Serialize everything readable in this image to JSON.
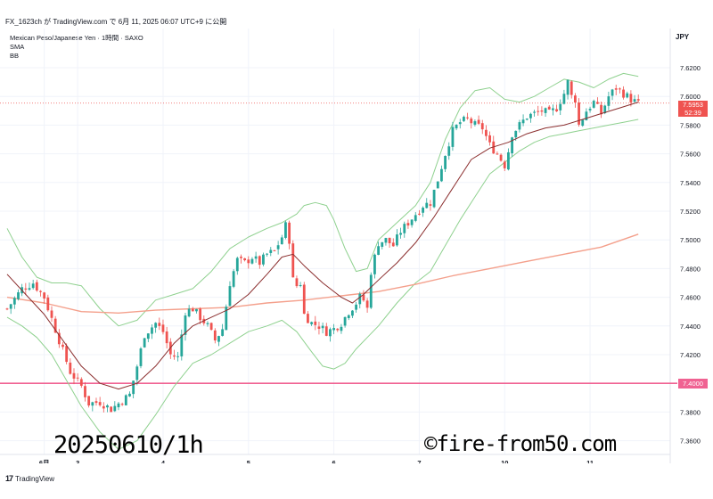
{
  "header": {
    "publish_line": "FX_1623ch が TradingView.com で 6月 11, 2025 06:07 UTC+9 に公開"
  },
  "legend": {
    "symbol": "Mexican Peso/Japanese Yen · 1時間 · SAXO",
    "ind1": "SMA",
    "ind2": "BB"
  },
  "currency": "JPY",
  "price_tag": {
    "price": "7.5953",
    "countdown": "52:39",
    "color": "#ef5350"
  },
  "level_tag": {
    "price": "7.4000",
    "color": "#f06292"
  },
  "footer": {
    "brand": "TradingView"
  },
  "watermarks": {
    "left": "20250610/1h",
    "right": "©fire-from50.com"
  },
  "colors": {
    "up": "#26a69a",
    "down": "#ef5350",
    "sma_short": "#8b2e2e",
    "sma_long": "#f4a08c",
    "bb": "#8fd18f",
    "level_line": "#f06292",
    "grid": "#f0f3fa"
  },
  "chart_data": {
    "type": "candlestick",
    "y_ticks": [
      "7.6200",
      "7.6000",
      "7.5800",
      "7.5600",
      "7.5400",
      "7.5200",
      "7.5000",
      "7.4800",
      "7.4600",
      "7.4400",
      "7.4200",
      "7.4000",
      "7.3800",
      "7.3600"
    ],
    "ylim": [
      7.349,
      7.6435
    ],
    "x_ticks": [
      {
        "label": "6月",
        "i": 10
      },
      {
        "label": "3",
        "i": 19
      },
      {
        "label": "4",
        "i": 42
      },
      {
        "label": "5",
        "i": 65
      },
      {
        "label": "6",
        "i": 88
      },
      {
        "label": "7",
        "i": 111
      },
      {
        "label": "10",
        "i": 134
      },
      {
        "label": "11",
        "i": 157
      }
    ],
    "close_points": [
      [
        0,
        7.452
      ],
      [
        4,
        7.466
      ],
      [
        7,
        7.47
      ],
      [
        10,
        7.46
      ],
      [
        14,
        7.43
      ],
      [
        17,
        7.408
      ],
      [
        20,
        7.398
      ],
      [
        22,
        7.386
      ],
      [
        25,
        7.387
      ],
      [
        28,
        7.382
      ],
      [
        31,
        7.388
      ],
      [
        33,
        7.392
      ],
      [
        35,
        7.412
      ],
      [
        37,
        7.434
      ],
      [
        40,
        7.442
      ],
      [
        42,
        7.436
      ],
      [
        44,
        7.42
      ],
      [
        46,
        7.418
      ],
      [
        48,
        7.45
      ],
      [
        50,
        7.452
      ],
      [
        52,
        7.446
      ],
      [
        54,
        7.44
      ],
      [
        56,
        7.43
      ],
      [
        58,
        7.438
      ],
      [
        60,
        7.47
      ],
      [
        62,
        7.486
      ],
      [
        64,
        7.484
      ],
      [
        66,
        7.488
      ],
      [
        68,
        7.484
      ],
      [
        70,
        7.49
      ],
      [
        72,
        7.492
      ],
      [
        74,
        7.502
      ],
      [
        75,
        7.51
      ],
      [
        76,
        7.5
      ],
      [
        77,
        7.472
      ],
      [
        78,
        7.468
      ],
      [
        79,
        7.47
      ],
      [
        80,
        7.448
      ],
      [
        82,
        7.442
      ],
      [
        84,
        7.44
      ],
      [
        86,
        7.436
      ],
      [
        88,
        7.438
      ],
      [
        90,
        7.442
      ],
      [
        92,
        7.45
      ],
      [
        94,
        7.456
      ],
      [
        95,
        7.46
      ],
      [
        96,
        7.458
      ],
      [
        97,
        7.452
      ],
      [
        98,
        7.478
      ],
      [
        100,
        7.498
      ],
      [
        102,
        7.5
      ],
      [
        104,
        7.496
      ],
      [
        106,
        7.506
      ],
      [
        108,
        7.512
      ],
      [
        110,
        7.518
      ],
      [
        112,
        7.524
      ],
      [
        114,
        7.526
      ],
      [
        116,
        7.542
      ],
      [
        118,
        7.56
      ],
      [
        120,
        7.576
      ],
      [
        122,
        7.582
      ],
      [
        124,
        7.584
      ],
      [
        126,
        7.58
      ],
      [
        128,
        7.578
      ],
      [
        130,
        7.566
      ],
      [
        132,
        7.56
      ],
      [
        134,
        7.552
      ],
      [
        135,
        7.562
      ],
      [
        136,
        7.574
      ],
      [
        138,
        7.58
      ],
      [
        140,
        7.586
      ],
      [
        142,
        7.588
      ],
      [
        144,
        7.59
      ],
      [
        146,
        7.588
      ],
      [
        148,
        7.592
      ],
      [
        150,
        7.602
      ],
      [
        151,
        7.61
      ],
      [
        152,
        7.6
      ],
      [
        153,
        7.598
      ],
      [
        154,
        7.58
      ],
      [
        156,
        7.59
      ],
      [
        158,
        7.596
      ],
      [
        160,
        7.588
      ],
      [
        162,
        7.6
      ],
      [
        164,
        7.606
      ],
      [
        166,
        7.602
      ],
      [
        168,
        7.598
      ],
      [
        170,
        7.595
      ]
    ],
    "sma_short": [
      [
        0,
        7.476
      ],
      [
        5,
        7.462
      ],
      [
        10,
        7.448
      ],
      [
        15,
        7.43
      ],
      [
        20,
        7.412
      ],
      [
        25,
        7.4
      ],
      [
        30,
        7.396
      ],
      [
        35,
        7.4
      ],
      [
        40,
        7.412
      ],
      [
        45,
        7.428
      ],
      [
        50,
        7.44
      ],
      [
        55,
        7.446
      ],
      [
        60,
        7.452
      ],
      [
        65,
        7.462
      ],
      [
        70,
        7.476
      ],
      [
        74,
        7.488
      ],
      [
        77,
        7.49
      ],
      [
        80,
        7.482
      ],
      [
        85,
        7.47
      ],
      [
        90,
        7.46
      ],
      [
        93,
        7.456
      ],
      [
        96,
        7.462
      ],
      [
        100,
        7.472
      ],
      [
        105,
        7.484
      ],
      [
        110,
        7.498
      ],
      [
        115,
        7.516
      ],
      [
        120,
        7.536
      ],
      [
        125,
        7.556
      ],
      [
        130,
        7.564
      ],
      [
        135,
        7.568
      ],
      [
        140,
        7.574
      ],
      [
        145,
        7.578
      ],
      [
        150,
        7.58
      ],
      [
        155,
        7.584
      ],
      [
        160,
        7.588
      ],
      [
        165,
        7.592
      ],
      [
        170,
        7.596
      ]
    ],
    "sma_long": [
      [
        0,
        7.46
      ],
      [
        10,
        7.456
      ],
      [
        20,
        7.45
      ],
      [
        30,
        7.449
      ],
      [
        40,
        7.451
      ],
      [
        50,
        7.452
      ],
      [
        60,
        7.453
      ],
      [
        70,
        7.456
      ],
      [
        80,
        7.458
      ],
      [
        90,
        7.461
      ],
      [
        100,
        7.464
      ],
      [
        110,
        7.469
      ],
      [
        120,
        7.475
      ],
      [
        130,
        7.48
      ],
      [
        140,
        7.485
      ],
      [
        150,
        7.49
      ],
      [
        160,
        7.495
      ],
      [
        170,
        7.504
      ]
    ],
    "bb_upper": [
      [
        0,
        7.508
      ],
      [
        4,
        7.488
      ],
      [
        8,
        7.474
      ],
      [
        12,
        7.47
      ],
      [
        16,
        7.47
      ],
      [
        20,
        7.468
      ],
      [
        25,
        7.452
      ],
      [
        30,
        7.44
      ],
      [
        35,
        7.444
      ],
      [
        40,
        7.458
      ],
      [
        45,
        7.462
      ],
      [
        50,
        7.466
      ],
      [
        55,
        7.478
      ],
      [
        60,
        7.494
      ],
      [
        65,
        7.502
      ],
      [
        70,
        7.508
      ],
      [
        74,
        7.512
      ],
      [
        78,
        7.518
      ],
      [
        80,
        7.524
      ],
      [
        83,
        7.526
      ],
      [
        86,
        7.524
      ],
      [
        88,
        7.514
      ],
      [
        91,
        7.494
      ],
      [
        94,
        7.478
      ],
      [
        97,
        7.48
      ],
      [
        100,
        7.5
      ],
      [
        105,
        7.512
      ],
      [
        110,
        7.524
      ],
      [
        114,
        7.54
      ],
      [
        118,
        7.57
      ],
      [
        122,
        7.592
      ],
      [
        126,
        7.604
      ],
      [
        130,
        7.606
      ],
      [
        134,
        7.598
      ],
      [
        138,
        7.596
      ],
      [
        142,
        7.6
      ],
      [
        146,
        7.606
      ],
      [
        150,
        7.612
      ],
      [
        154,
        7.61
      ],
      [
        158,
        7.606
      ],
      [
        162,
        7.612
      ],
      [
        166,
        7.616
      ],
      [
        170,
        7.614
      ]
    ],
    "bb_lower": [
      [
        0,
        7.446
      ],
      [
        4,
        7.44
      ],
      [
        8,
        7.432
      ],
      [
        12,
        7.42
      ],
      [
        16,
        7.402
      ],
      [
        20,
        7.384
      ],
      [
        25,
        7.366
      ],
      [
        30,
        7.354
      ],
      [
        35,
        7.36
      ],
      [
        40,
        7.378
      ],
      [
        45,
        7.398
      ],
      [
        50,
        7.414
      ],
      [
        55,
        7.42
      ],
      [
        60,
        7.428
      ],
      [
        65,
        7.436
      ],
      [
        70,
        7.44
      ],
      [
        74,
        7.444
      ],
      [
        78,
        7.436
      ],
      [
        82,
        7.422
      ],
      [
        85,
        7.412
      ],
      [
        88,
        7.41
      ],
      [
        91,
        7.414
      ],
      [
        94,
        7.424
      ],
      [
        97,
        7.432
      ],
      [
        100,
        7.44
      ],
      [
        105,
        7.456
      ],
      [
        110,
        7.47
      ],
      [
        114,
        7.478
      ],
      [
        118,
        7.496
      ],
      [
        122,
        7.514
      ],
      [
        126,
        7.53
      ],
      [
        130,
        7.546
      ],
      [
        134,
        7.554
      ],
      [
        138,
        7.562
      ],
      [
        142,
        7.568
      ],
      [
        146,
        7.572
      ],
      [
        150,
        7.574
      ],
      [
        154,
        7.576
      ],
      [
        158,
        7.578
      ],
      [
        162,
        7.58
      ],
      [
        166,
        7.582
      ],
      [
        170,
        7.584
      ]
    ],
    "horizontal_level": 7.4,
    "current_price": 7.5953
  }
}
